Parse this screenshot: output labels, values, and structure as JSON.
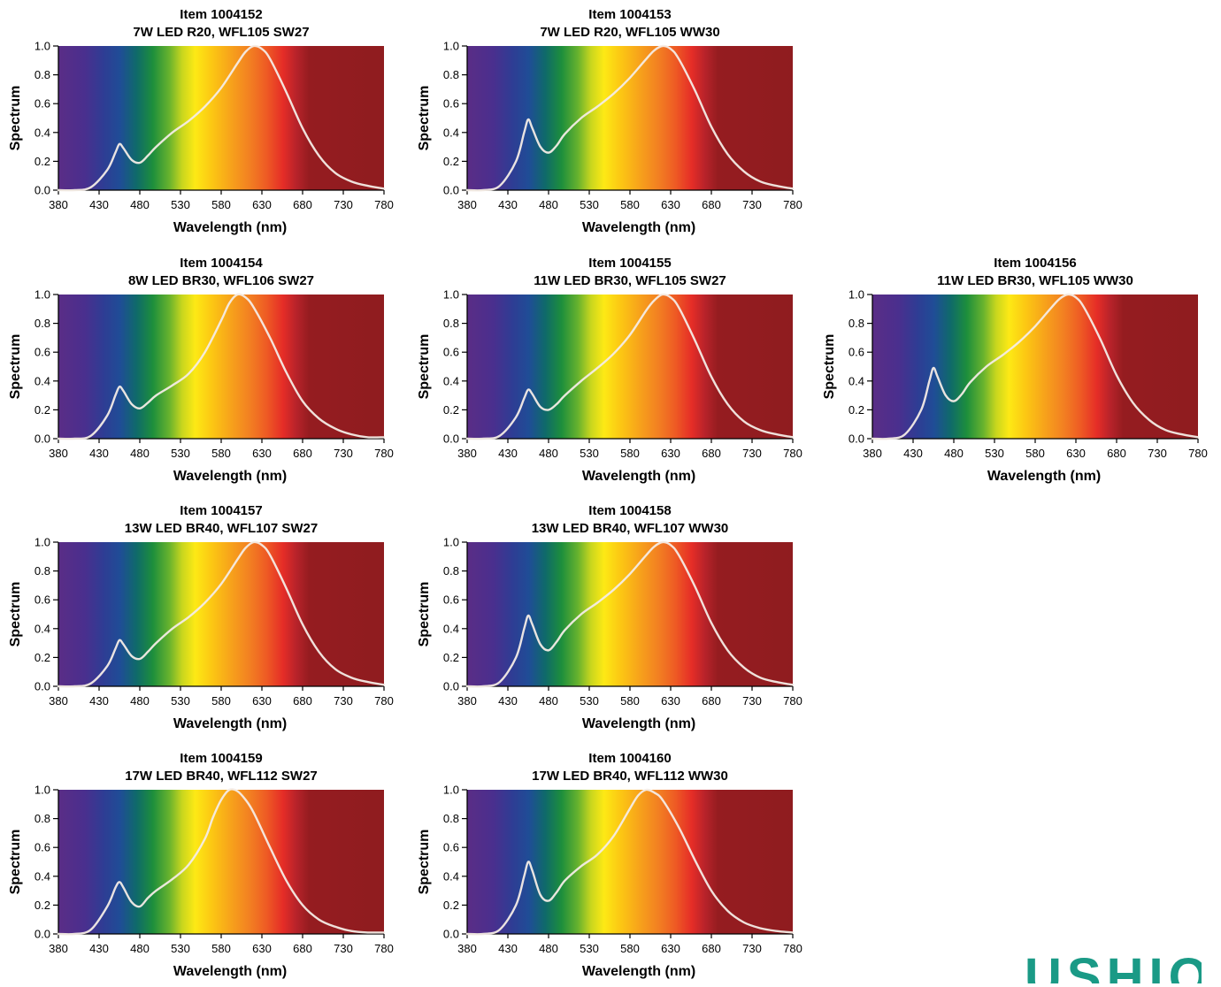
{
  "brand": {
    "logo_text": "USHIO",
    "accent_color": "#1a9a86"
  },
  "chart_data": [
    {
      "type": "line",
      "title": "Item 1004152",
      "subtitle": "7W LED R20, WFL105 SW27",
      "xlabel": "Wavelength (nm)",
      "ylabel": "Spectrum",
      "xlim": [
        380,
        780
      ],
      "ylim": [
        0,
        1.0
      ],
      "x_ticks": [
        380,
        430,
        480,
        530,
        580,
        630,
        680,
        730,
        780
      ],
      "y_ticks": [
        "0.0",
        "0.2",
        "0.4",
        "0.6",
        "0.8",
        "1.0"
      ],
      "x": [
        380,
        400,
        420,
        440,
        450,
        455,
        460,
        470,
        480,
        490,
        500,
        520,
        540,
        560,
        580,
        600,
        610,
        620,
        630,
        640,
        660,
        680,
        700,
        720,
        740,
        760,
        780
      ],
      "y": [
        0,
        0,
        0.02,
        0.14,
        0.26,
        0.32,
        0.29,
        0.21,
        0.19,
        0.24,
        0.3,
        0.4,
        0.48,
        0.58,
        0.71,
        0.88,
        0.96,
        1.0,
        0.98,
        0.91,
        0.68,
        0.43,
        0.24,
        0.12,
        0.06,
        0.03,
        0.01
      ]
    },
    {
      "type": "line",
      "title": "Item 1004153",
      "subtitle": "7W LED R20, WFL105 WW30",
      "xlabel": "Wavelength (nm)",
      "ylabel": "Spectrum",
      "xlim": [
        380,
        780
      ],
      "ylim": [
        0,
        1.0
      ],
      "x_ticks": [
        380,
        430,
        480,
        530,
        580,
        630,
        680,
        730,
        780
      ],
      "y_ticks": [
        "0.0",
        "0.2",
        "0.4",
        "0.6",
        "0.8",
        "1.0"
      ],
      "x": [
        380,
        400,
        420,
        440,
        450,
        455,
        460,
        470,
        480,
        490,
        500,
        520,
        540,
        560,
        580,
        600,
        610,
        620,
        630,
        640,
        660,
        680,
        700,
        720,
        740,
        760,
        780
      ],
      "y": [
        0,
        0,
        0.03,
        0.2,
        0.4,
        0.49,
        0.43,
        0.3,
        0.26,
        0.31,
        0.39,
        0.5,
        0.58,
        0.67,
        0.78,
        0.91,
        0.97,
        1.0,
        0.98,
        0.91,
        0.69,
        0.44,
        0.25,
        0.13,
        0.06,
        0.03,
        0.01
      ]
    },
    {
      "type": "line",
      "title": "Item 1004154",
      "subtitle": "8W LED BR30, WFL106 SW27",
      "xlabel": "Wavelength (nm)",
      "ylabel": "Spectrum",
      "xlim": [
        380,
        780
      ],
      "ylim": [
        0,
        1.0
      ],
      "x_ticks": [
        380,
        430,
        480,
        530,
        580,
        630,
        680,
        730,
        780
      ],
      "y_ticks": [
        "0.0",
        "0.2",
        "0.4",
        "0.6",
        "0.8",
        "1.0"
      ],
      "x": [
        380,
        400,
        420,
        440,
        450,
        455,
        460,
        470,
        480,
        490,
        500,
        520,
        540,
        560,
        580,
        590,
        600,
        610,
        620,
        640,
        660,
        680,
        700,
        720,
        740,
        760,
        780
      ],
      "y": [
        0,
        0,
        0.02,
        0.16,
        0.3,
        0.36,
        0.33,
        0.24,
        0.21,
        0.25,
        0.3,
        0.37,
        0.45,
        0.6,
        0.82,
        0.94,
        1.0,
        0.98,
        0.91,
        0.7,
        0.46,
        0.26,
        0.14,
        0.07,
        0.03,
        0.01,
        0.01
      ]
    },
    {
      "type": "line",
      "title": "Item 1004155",
      "subtitle": "11W LED BR30, WFL105 SW27",
      "xlabel": "Wavelength (nm)",
      "ylabel": "Spectrum",
      "xlim": [
        380,
        780
      ],
      "ylim": [
        0,
        1.0
      ],
      "x_ticks": [
        380,
        430,
        480,
        530,
        580,
        630,
        680,
        730,
        780
      ],
      "y_ticks": [
        "0.0",
        "0.2",
        "0.4",
        "0.6",
        "0.8",
        "1.0"
      ],
      "x": [
        380,
        400,
        420,
        440,
        450,
        455,
        460,
        470,
        480,
        490,
        500,
        520,
        540,
        560,
        580,
        600,
        610,
        620,
        630,
        640,
        660,
        680,
        700,
        720,
        740,
        760,
        780
      ],
      "y": [
        0,
        0,
        0.02,
        0.15,
        0.28,
        0.34,
        0.31,
        0.22,
        0.2,
        0.24,
        0.3,
        0.4,
        0.49,
        0.59,
        0.72,
        0.89,
        0.96,
        1.0,
        0.98,
        0.91,
        0.68,
        0.43,
        0.24,
        0.12,
        0.06,
        0.03,
        0.01
      ]
    },
    {
      "type": "line",
      "title": "Item 1004156",
      "subtitle": "11W LED BR30, WFL105 WW30",
      "xlabel": "Wavelength (nm)",
      "ylabel": "Spectrum",
      "xlim": [
        380,
        780
      ],
      "ylim": [
        0,
        1.0
      ],
      "x_ticks": [
        380,
        430,
        480,
        530,
        580,
        630,
        680,
        730,
        780
      ],
      "y_ticks": [
        "0.0",
        "0.2",
        "0.4",
        "0.6",
        "0.8",
        "1.0"
      ],
      "x": [
        380,
        400,
        420,
        440,
        450,
        455,
        460,
        470,
        480,
        490,
        500,
        520,
        540,
        560,
        580,
        600,
        610,
        620,
        630,
        640,
        660,
        680,
        700,
        720,
        740,
        760,
        780
      ],
      "y": [
        0,
        0,
        0.03,
        0.2,
        0.4,
        0.49,
        0.43,
        0.3,
        0.26,
        0.31,
        0.39,
        0.5,
        0.58,
        0.67,
        0.78,
        0.91,
        0.97,
        1.0,
        0.98,
        0.91,
        0.69,
        0.44,
        0.25,
        0.13,
        0.06,
        0.03,
        0.01
      ]
    },
    {
      "type": "line",
      "title": "Item 1004157",
      "subtitle": "13W LED BR40, WFL107 SW27",
      "xlabel": "Wavelength (nm)",
      "ylabel": "Spectrum",
      "xlim": [
        380,
        780
      ],
      "ylim": [
        0,
        1.0
      ],
      "x_ticks": [
        380,
        430,
        480,
        530,
        580,
        630,
        680,
        730,
        780
      ],
      "y_ticks": [
        "0.0",
        "0.2",
        "0.4",
        "0.6",
        "0.8",
        "1.0"
      ],
      "x": [
        380,
        400,
        420,
        440,
        450,
        455,
        460,
        470,
        480,
        490,
        500,
        520,
        540,
        560,
        580,
        600,
        610,
        620,
        630,
        640,
        660,
        680,
        700,
        720,
        740,
        760,
        780
      ],
      "y": [
        0,
        0,
        0.02,
        0.14,
        0.26,
        0.32,
        0.29,
        0.21,
        0.19,
        0.24,
        0.3,
        0.4,
        0.48,
        0.58,
        0.71,
        0.88,
        0.96,
        1.0,
        0.98,
        0.91,
        0.68,
        0.43,
        0.24,
        0.12,
        0.06,
        0.03,
        0.01
      ]
    },
    {
      "type": "line",
      "title": "Item 1004158",
      "subtitle": "13W LED BR40, WFL107 WW30",
      "xlabel": "Wavelength (nm)",
      "ylabel": "Spectrum",
      "xlim": [
        380,
        780
      ],
      "ylim": [
        0,
        1.0
      ],
      "x_ticks": [
        380,
        430,
        480,
        530,
        580,
        630,
        680,
        730,
        780
      ],
      "y_ticks": [
        "0.0",
        "0.2",
        "0.4",
        "0.6",
        "0.8",
        "1.0"
      ],
      "x": [
        380,
        400,
        420,
        440,
        450,
        455,
        460,
        470,
        480,
        490,
        500,
        520,
        540,
        560,
        580,
        600,
        610,
        620,
        630,
        640,
        660,
        680,
        700,
        720,
        740,
        760,
        780
      ],
      "y": [
        0,
        0,
        0.03,
        0.2,
        0.4,
        0.49,
        0.43,
        0.29,
        0.25,
        0.31,
        0.39,
        0.5,
        0.58,
        0.67,
        0.78,
        0.91,
        0.97,
        1.0,
        0.98,
        0.91,
        0.69,
        0.44,
        0.25,
        0.13,
        0.06,
        0.03,
        0.01
      ]
    },
    {
      "type": "line",
      "title": "Item 1004159",
      "subtitle": "17W LED BR40, WFL112 SW27",
      "xlabel": "Wavelength (nm)",
      "ylabel": "Spectrum",
      "xlim": [
        380,
        780
      ],
      "ylim": [
        0,
        1.0
      ],
      "x_ticks": [
        380,
        430,
        480,
        530,
        580,
        630,
        680,
        730,
        780
      ],
      "y_ticks": [
        "0.0",
        "0.2",
        "0.4",
        "0.6",
        "0.8",
        "1.0"
      ],
      "x": [
        380,
        400,
        420,
        440,
        450,
        455,
        460,
        470,
        480,
        490,
        500,
        520,
        540,
        560,
        570,
        580,
        590,
        600,
        610,
        620,
        640,
        660,
        680,
        700,
        720,
        740,
        760,
        780
      ],
      "y": [
        0,
        0,
        0.03,
        0.19,
        0.32,
        0.36,
        0.32,
        0.22,
        0.19,
        0.25,
        0.3,
        0.38,
        0.48,
        0.66,
        0.81,
        0.93,
        1.0,
        0.99,
        0.93,
        0.84,
        0.6,
        0.37,
        0.2,
        0.1,
        0.05,
        0.02,
        0.01,
        0.01
      ]
    },
    {
      "type": "line",
      "title": "Item 1004160",
      "subtitle": "17W LED BR40, WFL112 WW30",
      "xlabel": "Wavelength (nm)",
      "ylabel": "Spectrum",
      "xlim": [
        380,
        780
      ],
      "ylim": [
        0,
        1.0
      ],
      "x_ticks": [
        380,
        430,
        480,
        530,
        580,
        630,
        680,
        730,
        780
      ],
      "y_ticks": [
        "0.0",
        "0.2",
        "0.4",
        "0.6",
        "0.8",
        "1.0"
      ],
      "x": [
        380,
        400,
        420,
        440,
        450,
        455,
        460,
        470,
        480,
        490,
        500,
        520,
        540,
        560,
        580,
        590,
        600,
        610,
        620,
        640,
        660,
        680,
        700,
        720,
        740,
        760,
        780
      ],
      "y": [
        0,
        0,
        0.03,
        0.2,
        0.4,
        0.5,
        0.44,
        0.27,
        0.23,
        0.29,
        0.37,
        0.47,
        0.55,
        0.68,
        0.87,
        0.96,
        1.0,
        0.98,
        0.93,
        0.74,
        0.51,
        0.3,
        0.16,
        0.08,
        0.04,
        0.02,
        0.01
      ]
    }
  ]
}
